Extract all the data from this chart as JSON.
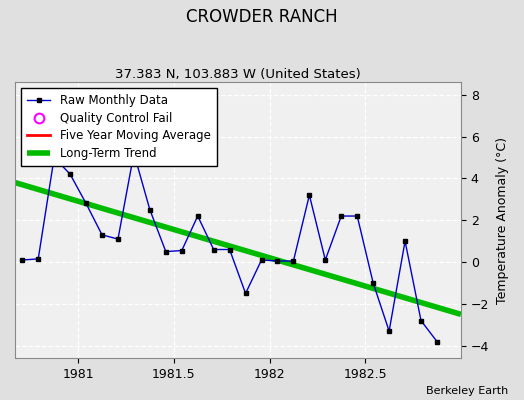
{
  "title": "CROWDER RANCH",
  "subtitle": "37.383 N, 103.883 W (United States)",
  "ylabel": "Temperature Anomaly (°C)",
  "attribution": "Berkeley Earth",
  "xlim": [
    1980.67,
    1983.0
  ],
  "ylim": [
    -4.6,
    8.6
  ],
  "yticks": [
    -4,
    -2,
    0,
    2,
    4,
    6,
    8
  ],
  "xticks": [
    1981,
    1981.5,
    1982,
    1982.5
  ],
  "xtick_labels": [
    "1981",
    "1981.5",
    "1982",
    "1982.5"
  ],
  "fig_bg_color": "#e0e0e0",
  "plot_bg_color": "#f0f0f0",
  "raw_color": "#0000cc",
  "raw_marker_color": "#000000",
  "moving_avg_color": "#ff0000",
  "trend_color": "#00bb00",
  "trend_linewidth": 4.0,
  "trend_x": [
    1980.67,
    1983.0
  ],
  "trend_y": [
    3.8,
    -2.5
  ],
  "grid_color": "#ffffff",
  "legend_fontsize": 8.5,
  "title_fontsize": 12,
  "subtitle_fontsize": 9.5,
  "months_x_start": 1980.708,
  "months_y": [
    0.1,
    0.15,
    5.0,
    4.2,
    2.8,
    1.3,
    1.1,
    5.2,
    2.5,
    0.5,
    0.55,
    2.2,
    0.6,
    0.6,
    -1.5,
    0.1,
    0.05,
    0.05,
    3.2,
    0.1,
    2.2,
    2.2,
    -1.0,
    -3.3,
    1.0,
    -2.8,
    -3.8
  ]
}
